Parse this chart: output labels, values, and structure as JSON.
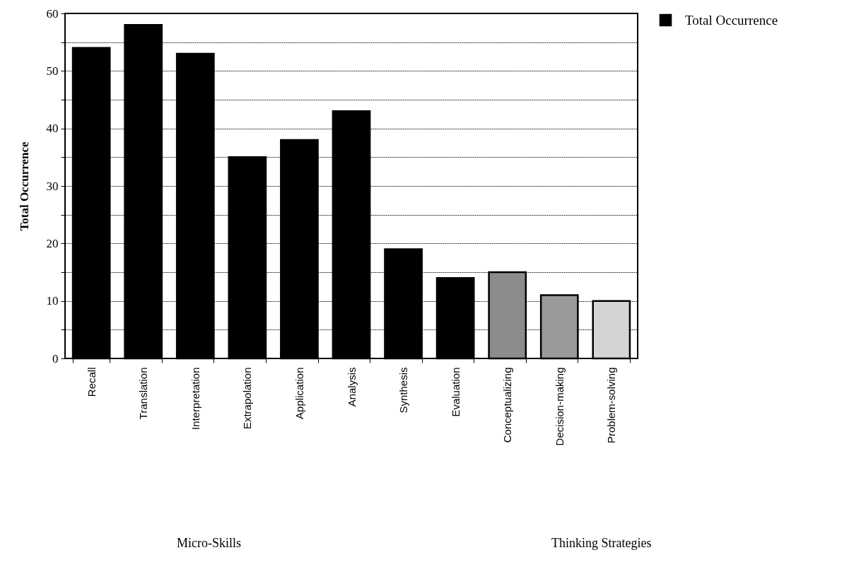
{
  "chart_data": {
    "type": "bar",
    "ylabel": "Total Occurrence",
    "categories": [
      "Recall",
      "Translation",
      "Interpretation",
      "Extrapolation",
      "Application",
      "Analysis",
      "Synthesis",
      "Evaluation",
      "Conceptualizing",
      "Decision-making",
      "Problem-solving"
    ],
    "series": [
      {
        "name": "Total Occurrence",
        "color": "#000000",
        "colors": [
          "#000000",
          "#000000",
          "#000000",
          "#000000",
          "#000000",
          "#000000",
          "#000000",
          "#000000",
          "#8c8c8c",
          "#9a9a9a",
          "#d4d4d4"
        ],
        "values": [
          54,
          58,
          53,
          35,
          38,
          43,
          19,
          14,
          15,
          11,
          10
        ]
      }
    ],
    "ylim": [
      0,
      60
    ],
    "yticks": [
      0,
      {
        "value": 5,
        "label": null
      },
      10,
      {
        "value": 15,
        "label": null
      },
      20,
      {
        "value": 25,
        "label": null
      },
      30,
      {
        "value": 35,
        "label": null
      },
      40,
      {
        "value": 45,
        "label": null
      },
      50,
      {
        "value": 55,
        "label": null
      },
      60
    ],
    "grid": "y",
    "legend": "right",
    "annotations": [
      "Micro-Skills",
      "Thinking Strategies"
    ]
  }
}
